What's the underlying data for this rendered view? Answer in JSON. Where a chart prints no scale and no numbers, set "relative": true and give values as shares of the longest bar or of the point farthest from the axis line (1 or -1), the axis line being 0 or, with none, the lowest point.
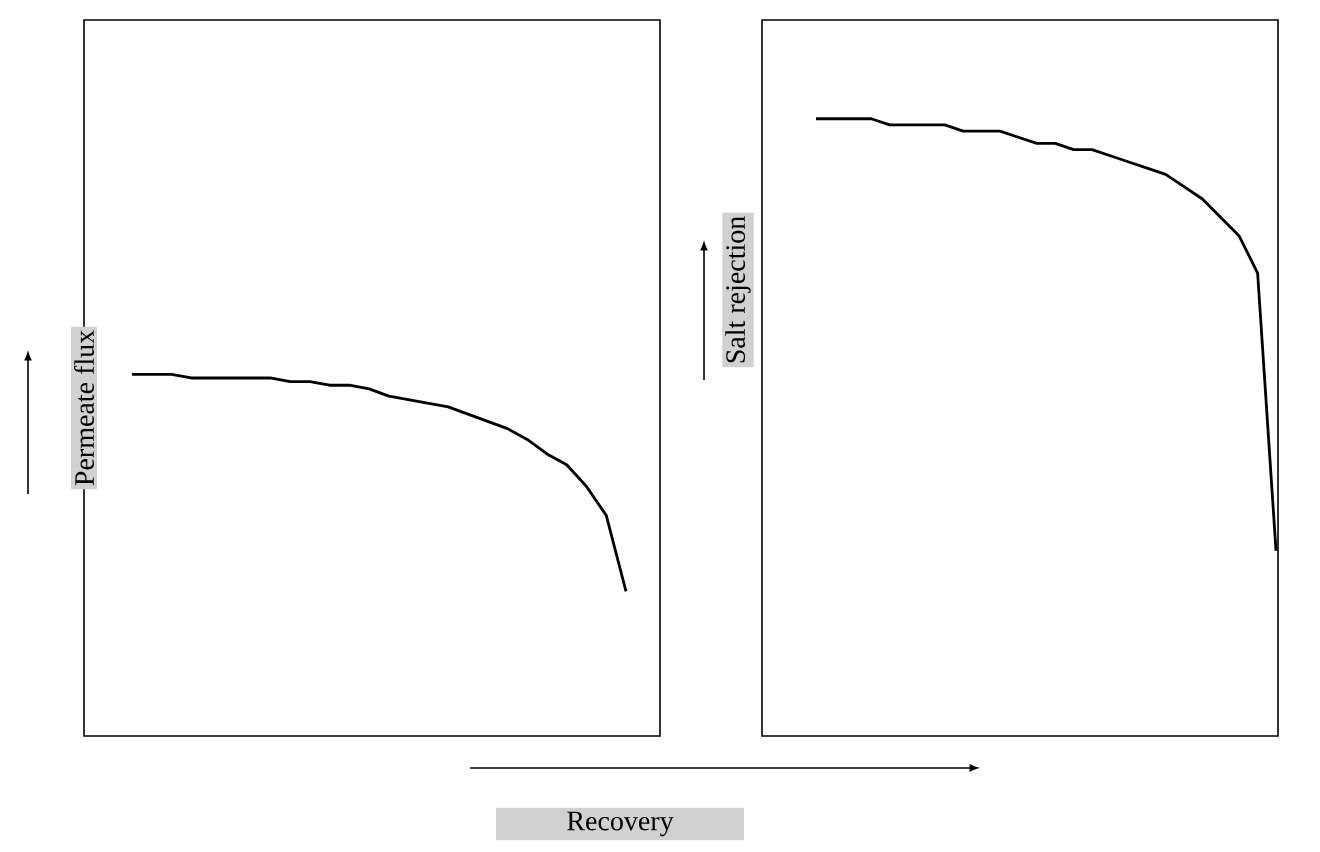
{
  "chart_data": [
    {
      "type": "line",
      "relative": true,
      "xlabel": "Recovery",
      "ylabel": "Permeate flux",
      "categories": [
        null,
        null,
        null,
        null,
        null,
        null,
        null,
        null,
        null,
        null,
        null,
        null,
        null,
        null,
        null,
        null,
        null,
        null,
        null,
        null,
        null,
        null,
        null,
        null,
        null,
        null
      ],
      "series": [
        {
          "color": "#000000",
          "values": [
            1,
            1,
            1,
            0.99,
            0.99,
            0.99,
            0.99,
            0.99,
            0.98,
            0.98,
            0.97,
            0.97,
            0.96,
            0.94,
            0.93,
            0.92,
            0.91,
            0.89,
            0.87,
            0.85,
            0.82,
            0.78,
            0.75,
            0.69,
            0.61,
            0.4
          ]
        }
      ]
    },
    {
      "type": "line",
      "relative": true,
      "ylabel": "Salt rejection",
      "categories": [
        null,
        null,
        null,
        null,
        null,
        null,
        null,
        null,
        null,
        null,
        null,
        null,
        null,
        null,
        null,
        null,
        null,
        null,
        null,
        null,
        null,
        null,
        null,
        null,
        null,
        null
      ],
      "series": [
        {
          "color": "#000000",
          "values": [
            1,
            1,
            1,
            1,
            0.99,
            0.99,
            0.99,
            0.99,
            0.98,
            0.98,
            0.98,
            0.97,
            0.96,
            0.96,
            0.95,
            0.95,
            0.94,
            0.93,
            0.92,
            0.91,
            0.89,
            0.87,
            0.84,
            0.81,
            0.75,
            0.3
          ]
        }
      ]
    }
  ]
}
